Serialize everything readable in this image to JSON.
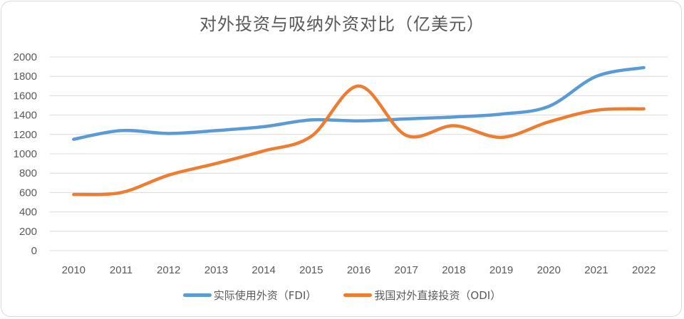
{
  "chart_data": {
    "type": "line",
    "title": "对外投资与吸纳外资对比（亿美元）",
    "xlabel": "",
    "ylabel": "",
    "categories": [
      "2010",
      "2011",
      "2012",
      "2013",
      "2014",
      "2015",
      "2016",
      "2017",
      "2018",
      "2019",
      "2020",
      "2021",
      "2022"
    ],
    "yticks": [
      "0",
      "200",
      "400",
      "600",
      "800",
      "1000",
      "1200",
      "1400",
      "1600",
      "1800",
      "2000"
    ],
    "ylim": [
      0,
      2000
    ],
    "grid": true,
    "smooth": true,
    "legend_position": "bottom",
    "series": [
      {
        "name": "实际使用外资（FDI）",
        "color": "#5b9bd5",
        "values": [
          1150,
          1240,
          1210,
          1240,
          1280,
          1350,
          1340,
          1360,
          1380,
          1410,
          1490,
          1800,
          1890
        ]
      },
      {
        "name": "我国对外直接投资（ODI）",
        "color": "#ed7d31",
        "values": [
          580,
          600,
          780,
          900,
          1030,
          1180,
          1700,
          1190,
          1290,
          1170,
          1330,
          1450,
          1465
        ]
      }
    ]
  }
}
